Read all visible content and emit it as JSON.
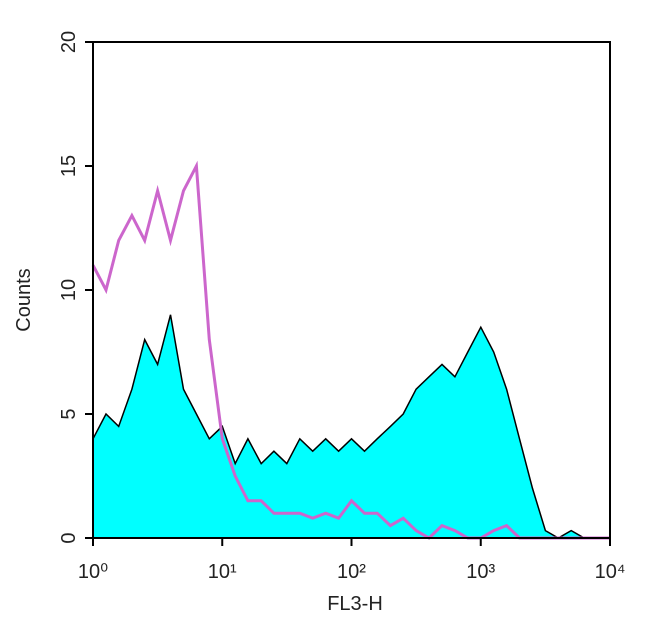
{
  "chart_data": {
    "type": "histogram_overlay",
    "x_label": "FL3-H",
    "y_label": "Counts",
    "log_x": true,
    "xlim": [
      1,
      10000
    ],
    "xticks": [
      {
        "value": 1,
        "label": "10⁰"
      },
      {
        "value": 10,
        "label": "10¹"
      },
      {
        "value": 100,
        "label": "10²"
      },
      {
        "value": 1000,
        "label": "10³"
      },
      {
        "value": 10000,
        "label": "10⁴"
      }
    ],
    "ylim": [
      0,
      20
    ],
    "yticks": [
      0,
      5,
      10,
      15,
      20
    ],
    "x": [
      1,
      1.26,
      1.58,
      2,
      2.51,
      3.16,
      3.98,
      5.01,
      6.31,
      7.94,
      10,
      12.6,
      15.8,
      20,
      25.1,
      31.6,
      39.8,
      50.1,
      63.1,
      79.4,
      100,
      126,
      158,
      200,
      251,
      316,
      398,
      501,
      631,
      794,
      1000,
      1259,
      1585,
      1995,
      2512,
      3162,
      3981,
      5012,
      6310,
      7943,
      10000
    ],
    "series": [
      {
        "color": "#00ffff",
        "line_color": "#000000",
        "fill": true,
        "values": [
          4,
          5,
          4.5,
          6,
          8,
          7,
          9,
          6,
          5,
          4,
          4.5,
          3,
          4,
          3,
          3.5,
          3,
          4,
          3.5,
          4,
          3.5,
          4,
          3.5,
          4,
          4.5,
          5,
          6,
          6.5,
          7,
          6.5,
          7.5,
          8.5,
          7.5,
          6,
          4,
          2,
          0.3,
          0,
          0.3,
          0,
          0,
          0
        ]
      },
      {
        "color": "#cc66cc",
        "fill": false,
        "values": [
          11,
          10,
          12,
          13,
          12,
          14,
          12,
          14,
          15,
          8,
          4,
          2.5,
          1.5,
          1.5,
          1,
          1,
          1,
          0.8,
          1,
          0.8,
          1.5,
          1,
          1,
          0.5,
          0.8,
          0.3,
          0,
          0.5,
          0.3,
          0,
          0,
          0.3,
          0.5,
          0,
          0,
          0,
          0,
          0,
          0,
          0,
          0
        ]
      }
    ]
  }
}
